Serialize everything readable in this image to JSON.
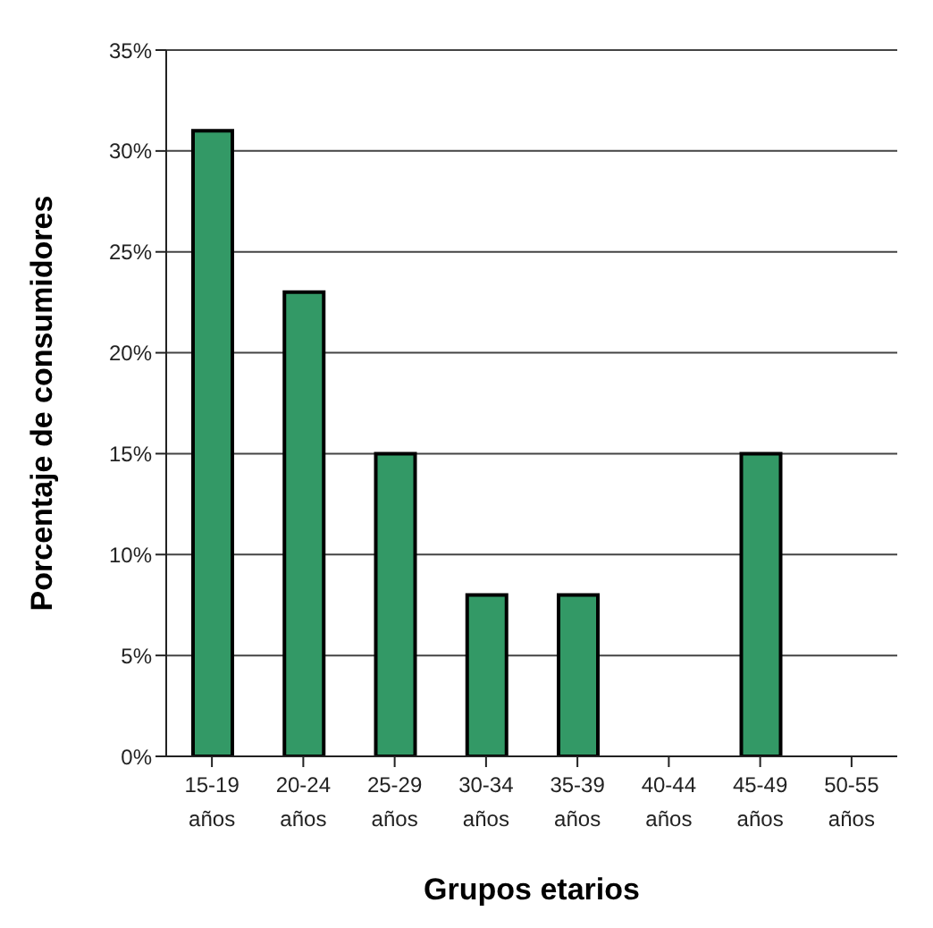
{
  "chart_data": {
    "type": "bar",
    "xlabel": "Grupos etarios",
    "ylabel": "Porcentaje de consumidores",
    "categories": [
      "15-19 años",
      "20-24 años",
      "25-29 años",
      "30-34 años",
      "35-39 años",
      "40-44 años",
      "45-49 años",
      "50-55 años"
    ],
    "values": [
      31,
      23,
      15,
      8,
      8,
      0,
      15,
      0
    ],
    "color": "#339966",
    "ylim": [
      0,
      35
    ],
    "yticks": [
      {
        "value": 0,
        "label": "0%"
      },
      {
        "value": 5,
        "label": "5%"
      },
      {
        "value": 10,
        "label": "10%"
      },
      {
        "value": 15,
        "label": "15%"
      },
      {
        "value": 20,
        "label": "20%"
      },
      {
        "value": 25,
        "label": "25%"
      },
      {
        "value": 30,
        "label": "30%"
      },
      {
        "value": 35,
        "label": "35%"
      }
    ],
    "grid": "y"
  }
}
